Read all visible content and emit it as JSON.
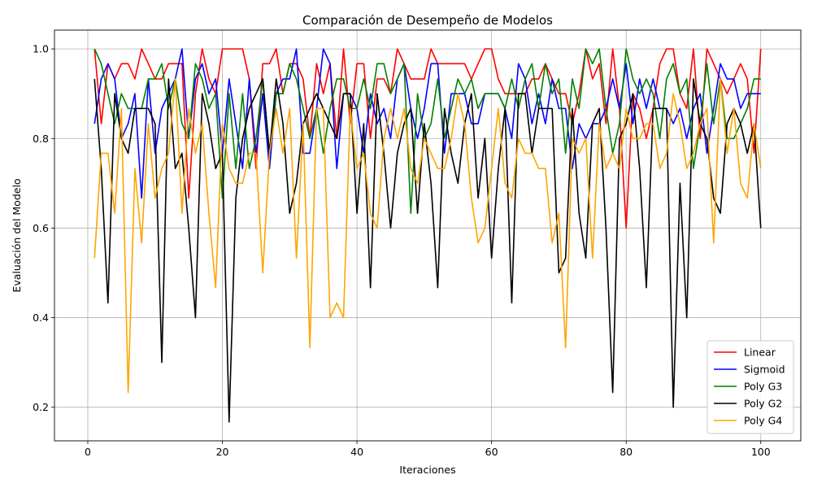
{
  "chart_data": {
    "type": "line",
    "title": "Comparación de Desempeño de Modelos",
    "xlabel": "Iteraciones",
    "ylabel": "Evaluación del Modelo",
    "xlim": [
      -4.95,
      105.95
    ],
    "ylim": [
      0.125,
      1.042
    ],
    "xticks": [
      0,
      20,
      40,
      60,
      80,
      100
    ],
    "yticks": [
      0.2,
      0.4,
      0.6,
      0.8,
      1.0
    ],
    "ytick_labels": [
      "0.2",
      "0.4",
      "0.6",
      "0.8",
      "1.0"
    ],
    "grid": true,
    "legend_position": "lower-right",
    "x": [
      1,
      2,
      3,
      4,
      5,
      6,
      7,
      8,
      9,
      10,
      11,
      12,
      13,
      14,
      15,
      16,
      17,
      18,
      19,
      20,
      21,
      22,
      23,
      24,
      25,
      26,
      27,
      28,
      29,
      30,
      31,
      32,
      33,
      34,
      35,
      36,
      37,
      38,
      39,
      40,
      41,
      42,
      43,
      44,
      45,
      46,
      47,
      48,
      49,
      50,
      51,
      52,
      53,
      54,
      55,
      56,
      57,
      58,
      59,
      60,
      61,
      62,
      63,
      64,
      65,
      66,
      67,
      68,
      69,
      70,
      71,
      72,
      73,
      74,
      75,
      76,
      77,
      78,
      79,
      80,
      81,
      82,
      83,
      84,
      85,
      86,
      87,
      88,
      89,
      90,
      91,
      92,
      93,
      94,
      95,
      96,
      97,
      98,
      99,
      100
    ],
    "series": [
      {
        "name": "Linear",
        "color": "#ff0000",
        "values": [
          1.0,
          0.833,
          0.967,
          0.933,
          0.967,
          0.967,
          0.933,
          1.0,
          0.967,
          0.933,
          0.933,
          0.967,
          0.967,
          0.967,
          0.667,
          0.9,
          1.0,
          0.933,
          0.9,
          1.0,
          1.0,
          1.0,
          1.0,
          0.933,
          0.733,
          0.967,
          0.967,
          1.0,
          0.9,
          0.967,
          0.967,
          0.933,
          0.8,
          0.967,
          0.9,
          0.967,
          0.8,
          1.0,
          0.833,
          0.967,
          0.967,
          0.8,
          0.933,
          0.933,
          0.9,
          1.0,
          0.967,
          0.933,
          0.933,
          0.933,
          1.0,
          0.967,
          0.967,
          0.967,
          0.967,
          0.967,
          0.933,
          0.967,
          1.0,
          1.0,
          0.933,
          0.9,
          0.9,
          0.9,
          0.9,
          0.933,
          0.933,
          0.967,
          0.933,
          0.9,
          0.9,
          0.833,
          0.9,
          1.0,
          0.933,
          0.967,
          0.833,
          1.0,
          0.867,
          0.6,
          0.9,
          0.867,
          0.8,
          0.867,
          0.967,
          1.0,
          1.0,
          0.9,
          0.867,
          1.0,
          0.8,
          1.0,
          0.967,
          0.933,
          0.9,
          0.933,
          0.967,
          0.933,
          0.767,
          1.0
        ]
      },
      {
        "name": "Sigmoid",
        "color": "#0000ff",
        "values": [
          0.833,
          0.933,
          0.967,
          0.933,
          0.8,
          0.833,
          0.9,
          0.667,
          0.933,
          0.767,
          0.867,
          0.9,
          0.933,
          1.0,
          0.8,
          0.933,
          0.967,
          0.9,
          0.933,
          0.767,
          0.933,
          0.833,
          0.733,
          0.933,
          0.767,
          0.9,
          0.733,
          0.9,
          0.933,
          0.933,
          1.0,
          0.767,
          0.767,
          0.867,
          1.0,
          0.967,
          0.733,
          0.9,
          0.9,
          0.867,
          0.767,
          0.9,
          0.833,
          0.867,
          0.8,
          0.933,
          0.967,
          0.867,
          0.8,
          0.867,
          0.967,
          0.967,
          0.767,
          0.9,
          0.9,
          0.9,
          0.833,
          0.833,
          0.9,
          0.9,
          0.9,
          0.867,
          0.8,
          0.967,
          0.933,
          0.833,
          0.9,
          0.833,
          0.933,
          0.867,
          0.867,
          0.733,
          0.833,
          0.8,
          0.833,
          0.833,
          0.867,
          0.933,
          0.867,
          0.967,
          0.833,
          0.933,
          0.867,
          0.933,
          0.867,
          0.867,
          0.833,
          0.867,
          0.8,
          0.867,
          0.9,
          0.767,
          0.867,
          0.967,
          0.933,
          0.933,
          0.867,
          0.9,
          0.9,
          0.9
        ]
      },
      {
        "name": "Poly G3",
        "color": "#008000",
        "values": [
          1.0,
          0.967,
          0.9,
          0.833,
          0.9,
          0.867,
          0.867,
          0.867,
          0.933,
          0.933,
          0.967,
          0.867,
          0.933,
          0.833,
          0.8,
          0.967,
          0.933,
          0.867,
          0.9,
          0.667,
          0.9,
          0.733,
          0.9,
          0.733,
          0.8,
          0.933,
          0.767,
          0.9,
          0.9,
          0.967,
          0.933,
          0.867,
          0.8,
          0.867,
          0.767,
          0.867,
          0.933,
          0.933,
          0.867,
          0.867,
          0.933,
          0.867,
          0.967,
          0.967,
          0.9,
          0.933,
          0.967,
          0.633,
          0.9,
          0.8,
          0.833,
          0.933,
          0.8,
          0.867,
          0.933,
          0.9,
          0.933,
          0.867,
          0.9,
          0.9,
          0.9,
          0.867,
          0.933,
          0.867,
          0.933,
          0.967,
          0.867,
          0.967,
          0.9,
          0.933,
          0.767,
          0.933,
          0.867,
          1.0,
          0.967,
          1.0,
          0.867,
          0.767,
          0.833,
          1.0,
          0.933,
          0.9,
          0.933,
          0.9,
          0.8,
          0.933,
          0.967,
          0.9,
          0.933,
          0.733,
          0.833,
          0.967,
          0.833,
          0.933,
          0.8,
          0.8,
          0.833,
          0.867,
          0.933,
          0.933
        ]
      },
      {
        "name": "Poly G2",
        "color": "#000000",
        "values": [
          0.933,
          0.733,
          0.433,
          0.9,
          0.8,
          0.767,
          0.867,
          0.867,
          0.867,
          0.833,
          0.3,
          0.933,
          0.733,
          0.767,
          0.6,
          0.4,
          0.9,
          0.833,
          0.733,
          0.767,
          0.167,
          0.667,
          0.8,
          0.867,
          0.9,
          0.933,
          0.767,
          0.933,
          0.833,
          0.633,
          0.7,
          0.833,
          0.867,
          0.9,
          0.867,
          0.833,
          0.8,
          0.9,
          0.9,
          0.633,
          0.833,
          0.467,
          0.9,
          0.767,
          0.6,
          0.767,
          0.833,
          0.867,
          0.633,
          0.833,
          0.7,
          0.467,
          0.867,
          0.767,
          0.7,
          0.833,
          0.9,
          0.667,
          0.8,
          0.533,
          0.733,
          0.867,
          0.433,
          0.9,
          0.9,
          0.767,
          0.867,
          0.867,
          0.867,
          0.5,
          0.533,
          0.867,
          0.633,
          0.533,
          0.833,
          0.867,
          0.6,
          0.233,
          0.8,
          0.833,
          0.9,
          0.733,
          0.467,
          0.867,
          0.867,
          0.867,
          0.2,
          0.7,
          0.4,
          0.933,
          0.833,
          0.8,
          0.667,
          0.633,
          0.833,
          0.867,
          0.833,
          0.767,
          0.833,
          0.6
        ]
      },
      {
        "name": "Poly G4",
        "color": "#ffa500",
        "values": [
          0.533,
          0.767,
          0.767,
          0.633,
          0.867,
          0.233,
          0.733,
          0.567,
          0.833,
          0.667,
          0.733,
          0.767,
          0.933,
          0.633,
          0.867,
          0.767,
          0.833,
          0.633,
          0.467,
          0.833,
          0.733,
          0.7,
          0.7,
          0.767,
          0.767,
          0.5,
          0.767,
          0.867,
          0.767,
          0.867,
          0.533,
          0.833,
          0.333,
          0.867,
          0.867,
          0.4,
          0.433,
          0.4,
          0.867,
          0.733,
          0.767,
          0.633,
          0.6,
          0.8,
          0.867,
          0.8,
          0.867,
          0.733,
          0.7,
          0.8,
          0.767,
          0.733,
          0.733,
          0.8,
          0.9,
          0.833,
          0.667,
          0.567,
          0.6,
          0.733,
          0.867,
          0.7,
          0.667,
          0.8,
          0.767,
          0.767,
          0.733,
          0.733,
          0.567,
          0.633,
          0.333,
          0.8,
          0.767,
          0.8,
          0.533,
          0.833,
          0.733,
          0.767,
          0.733,
          0.867,
          0.8,
          0.8,
          0.833,
          0.833,
          0.733,
          0.767,
          0.9,
          0.833,
          0.733,
          0.767,
          0.833,
          0.867,
          0.567,
          0.933,
          0.767,
          0.867,
          0.7,
          0.667,
          0.833,
          0.733
        ]
      }
    ]
  }
}
